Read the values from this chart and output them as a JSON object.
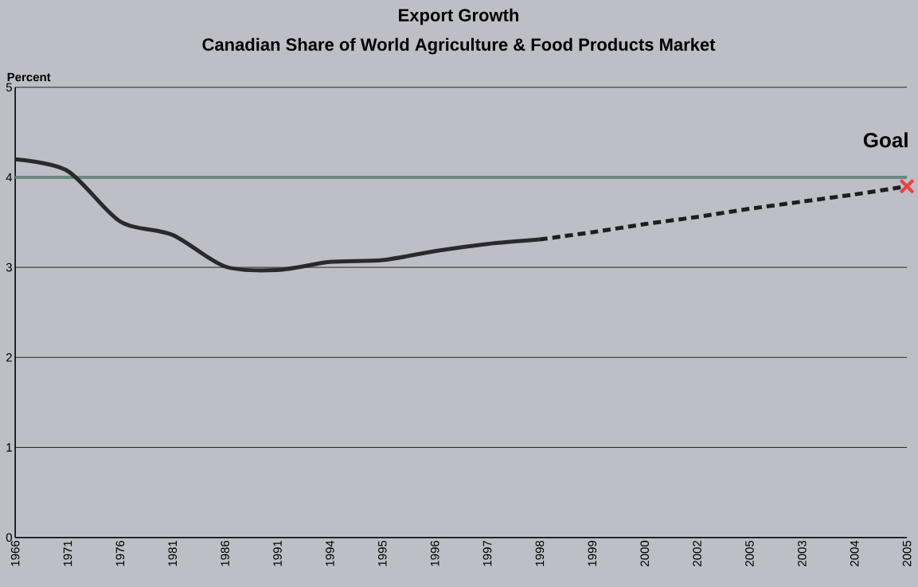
{
  "chart_data": {
    "type": "line",
    "title": "Export Growth",
    "subtitle": "Canadian Share of World Agriculture & Food Products Market",
    "ylabel": "Percent",
    "categories": [
      "1966",
      "1971",
      "1976",
      "1981",
      "1986",
      "1991",
      "1994",
      "1995",
      "1996",
      "1997",
      "1998",
      "1999",
      "2000",
      "2002",
      "2005",
      "2003",
      "2004",
      "2005"
    ],
    "series": [
      {
        "color": "#2a2a2e",
        "line_style": "solid",
        "values": [
          4.2,
          4.07,
          3.51,
          3.36,
          3.01,
          2.97,
          3.06,
          3.08,
          3.18,
          3.26,
          3.31,
          null,
          null,
          null,
          null,
          null,
          null,
          null
        ]
      },
      {
        "color": "#1e1e22",
        "line_style": "dashed",
        "values": [
          null,
          null,
          null,
          null,
          null,
          null,
          null,
          null,
          null,
          null,
          3.31,
          3.39,
          3.48,
          3.56,
          3.65,
          3.73,
          3.81,
          3.9
        ]
      },
      {
        "type": "scatter",
        "color": "#f0403a",
        "marker": "cross",
        "values": [
          null,
          null,
          null,
          null,
          null,
          null,
          null,
          null,
          null,
          null,
          null,
          null,
          null,
          null,
          null,
          null,
          null,
          3.9
        ]
      }
    ],
    "ylim": [
      0,
      5
    ],
    "yticks": [
      0,
      1,
      2,
      3,
      4,
      5
    ],
    "grid": "y",
    "ref_lines": [
      {
        "axis": "y",
        "value": 4,
        "color": "#6b8884"
      }
    ],
    "annotations": [
      "Goal"
    ]
  }
}
